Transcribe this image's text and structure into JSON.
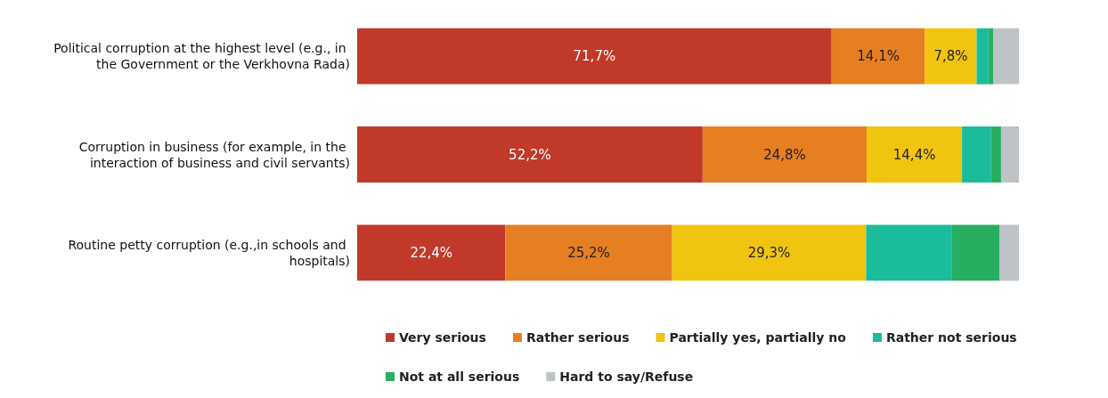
{
  "chart_data": {
    "type": "bar",
    "orientation": "horizontal",
    "stacked": true,
    "xlim": [
      0,
      100
    ],
    "tick_labels": "y",
    "legend": "bottom",
    "categories": [
      "Political corruption at the highest level (e.g., in the Government or the Verkhovna Rada)",
      "Corruption in business (for example, in the interaction of business and civil servants)",
      "Routine petty corruption (e.g.,in schools and hospitals)"
    ],
    "series": [
      {
        "name": "Very serious",
        "color": "#c0392b",
        "values": [
          71.7,
          52.2,
          22.4
        ],
        "value_labels": [
          "71,7%",
          "52,2%",
          "22,4%"
        ]
      },
      {
        "name": "Rather serious",
        "color": "#e67e22",
        "values": [
          14.1,
          24.8,
          25.2
        ],
        "value_labels": [
          "14,1%",
          "24,8%",
          "25,2%"
        ]
      },
      {
        "name": "Partially yes, partially no",
        "color": "#f1c40f",
        "values": [
          7.8,
          14.4,
          29.3
        ],
        "value_labels": [
          "7,8%",
          "14,4%",
          "29,3%"
        ]
      },
      {
        "name": "Rather not serious",
        "color": "#1abc9c",
        "values": [
          1.8,
          4.4,
          12.9
        ],
        "value_labels": [
          null,
          null,
          null
        ]
      },
      {
        "name": "Not at all serious",
        "color": "#27ae60",
        "values": [
          0.7,
          1.5,
          7.3
        ],
        "value_labels": [
          null,
          null,
          null
        ]
      },
      {
        "name": "Hard to say/Refuse",
        "color": "#bdc3c7",
        "values": [
          3.9,
          2.7,
          2.9
        ],
        "value_labels": [
          null,
          null,
          null
        ]
      }
    ]
  }
}
